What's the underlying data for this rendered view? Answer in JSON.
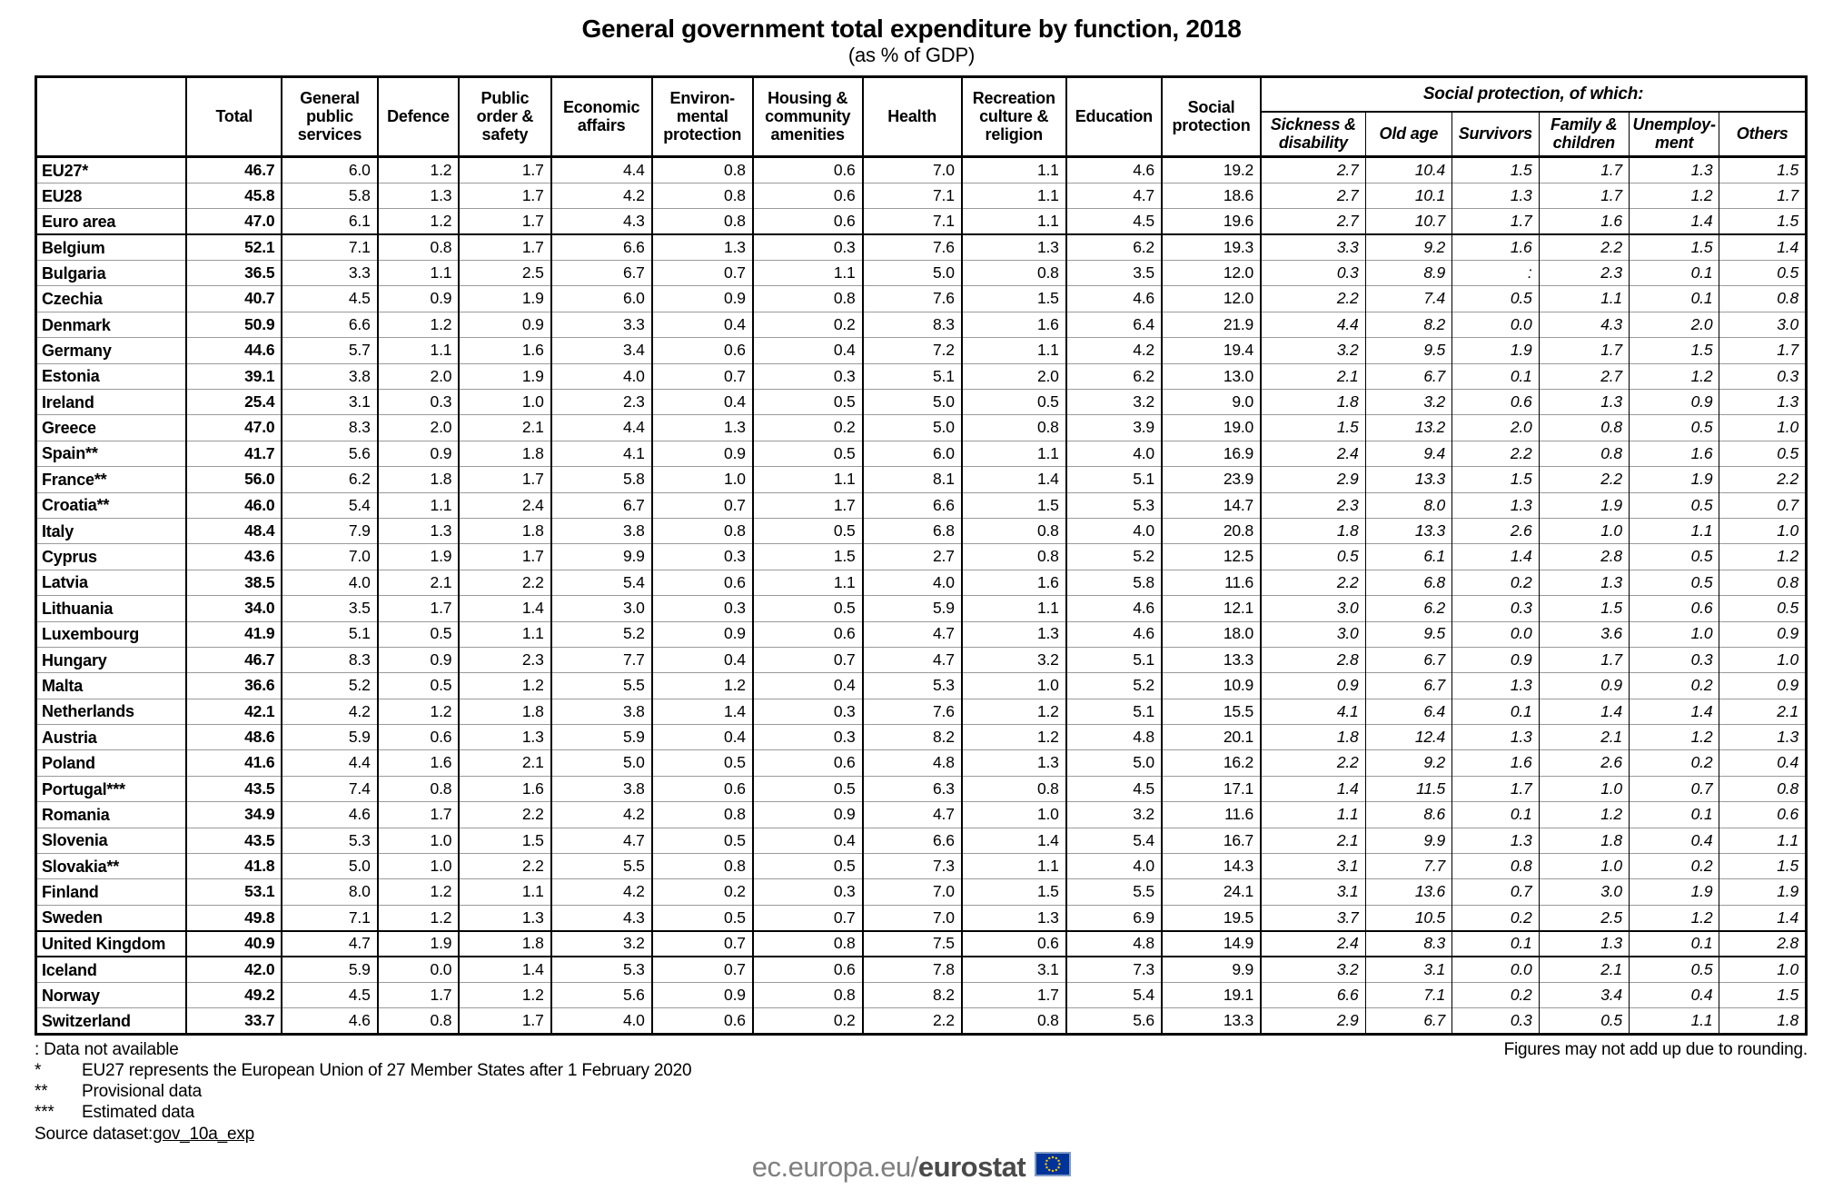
{
  "title": "General government total expenditure by function, 2018",
  "subtitle": "(as % of GDP)",
  "table": {
    "columns": [
      "Total",
      "General public services",
      "Defence",
      "Public order & safety",
      "Economic affairs",
      "Environ-mental protection",
      "Housing & community amenities",
      "Health",
      "Recreation culture & religion",
      "Education",
      "Social protection"
    ],
    "group_header": "Social protection, of which:",
    "sub_columns": [
      "Sickness & disability",
      "Old age",
      "Survivors",
      "Family & children",
      "Unemploy-ment",
      "Others"
    ],
    "rows": [
      {
        "name": "EU27*",
        "values": [
          "46.7",
          "6.0",
          "1.2",
          "1.7",
          "4.4",
          "0.8",
          "0.6",
          "7.0",
          "1.1",
          "4.6",
          "19.2",
          "2.7",
          "10.4",
          "1.5",
          "1.7",
          "1.3",
          "1.5"
        ]
      },
      {
        "name": "EU28",
        "values": [
          "45.8",
          "5.8",
          "1.3",
          "1.7",
          "4.2",
          "0.8",
          "0.6",
          "7.1",
          "1.1",
          "4.7",
          "18.6",
          "2.7",
          "10.1",
          "1.3",
          "1.7",
          "1.2",
          "1.7"
        ]
      },
      {
        "name": "Euro area",
        "values": [
          "47.0",
          "6.1",
          "1.2",
          "1.7",
          "4.3",
          "0.8",
          "0.6",
          "7.1",
          "1.1",
          "4.5",
          "19.6",
          "2.7",
          "10.7",
          "1.7",
          "1.6",
          "1.4",
          "1.5"
        ]
      },
      {
        "name": "Belgium",
        "group_start": true,
        "values": [
          "52.1",
          "7.1",
          "0.8",
          "1.7",
          "6.6",
          "1.3",
          "0.3",
          "7.6",
          "1.3",
          "6.2",
          "19.3",
          "3.3",
          "9.2",
          "1.6",
          "2.2",
          "1.5",
          "1.4"
        ]
      },
      {
        "name": "Bulgaria",
        "values": [
          "36.5",
          "3.3",
          "1.1",
          "2.5",
          "6.7",
          "0.7",
          "1.1",
          "5.0",
          "0.8",
          "3.5",
          "12.0",
          "0.3",
          "8.9",
          ":",
          "2.3",
          "0.1",
          "0.5"
        ]
      },
      {
        "name": "Czechia",
        "values": [
          "40.7",
          "4.5",
          "0.9",
          "1.9",
          "6.0",
          "0.9",
          "0.8",
          "7.6",
          "1.5",
          "4.6",
          "12.0",
          "2.2",
          "7.4",
          "0.5",
          "1.1",
          "0.1",
          "0.8"
        ]
      },
      {
        "name": "Denmark",
        "values": [
          "50.9",
          "6.6",
          "1.2",
          "0.9",
          "3.3",
          "0.4",
          "0.2",
          "8.3",
          "1.6",
          "6.4",
          "21.9",
          "4.4",
          "8.2",
          "0.0",
          "4.3",
          "2.0",
          "3.0"
        ]
      },
      {
        "name": "Germany",
        "values": [
          "44.6",
          "5.7",
          "1.1",
          "1.6",
          "3.4",
          "0.6",
          "0.4",
          "7.2",
          "1.1",
          "4.2",
          "19.4",
          "3.2",
          "9.5",
          "1.9",
          "1.7",
          "1.5",
          "1.7"
        ]
      },
      {
        "name": "Estonia",
        "values": [
          "39.1",
          "3.8",
          "2.0",
          "1.9",
          "4.0",
          "0.7",
          "0.3",
          "5.1",
          "2.0",
          "6.2",
          "13.0",
          "2.1",
          "6.7",
          "0.1",
          "2.7",
          "1.2",
          "0.3"
        ]
      },
      {
        "name": "Ireland",
        "values": [
          "25.4",
          "3.1",
          "0.3",
          "1.0",
          "2.3",
          "0.4",
          "0.5",
          "5.0",
          "0.5",
          "3.2",
          "9.0",
          "1.8",
          "3.2",
          "0.6",
          "1.3",
          "0.9",
          "1.3"
        ]
      },
      {
        "name": "Greece",
        "values": [
          "47.0",
          "8.3",
          "2.0",
          "2.1",
          "4.4",
          "1.3",
          "0.2",
          "5.0",
          "0.8",
          "3.9",
          "19.0",
          "1.5",
          "13.2",
          "2.0",
          "0.8",
          "0.5",
          "1.0"
        ]
      },
      {
        "name": "Spain**",
        "values": [
          "41.7",
          "5.6",
          "0.9",
          "1.8",
          "4.1",
          "0.9",
          "0.5",
          "6.0",
          "1.1",
          "4.0",
          "16.9",
          "2.4",
          "9.4",
          "2.2",
          "0.8",
          "1.6",
          "0.5"
        ]
      },
      {
        "name": "France**",
        "values": [
          "56.0",
          "6.2",
          "1.8",
          "1.7",
          "5.8",
          "1.0",
          "1.1",
          "8.1",
          "1.4",
          "5.1",
          "23.9",
          "2.9",
          "13.3",
          "1.5",
          "2.2",
          "1.9",
          "2.2"
        ]
      },
      {
        "name": "Croatia**",
        "values": [
          "46.0",
          "5.4",
          "1.1",
          "2.4",
          "6.7",
          "0.7",
          "1.7",
          "6.6",
          "1.5",
          "5.3",
          "14.7",
          "2.3",
          "8.0",
          "1.3",
          "1.9",
          "0.5",
          "0.7"
        ]
      },
      {
        "name": "Italy",
        "values": [
          "48.4",
          "7.9",
          "1.3",
          "1.8",
          "3.8",
          "0.8",
          "0.5",
          "6.8",
          "0.8",
          "4.0",
          "20.8",
          "1.8",
          "13.3",
          "2.6",
          "1.0",
          "1.1",
          "1.0"
        ]
      },
      {
        "name": "Cyprus",
        "values": [
          "43.6",
          "7.0",
          "1.9",
          "1.7",
          "9.9",
          "0.3",
          "1.5",
          "2.7",
          "0.8",
          "5.2",
          "12.5",
          "0.5",
          "6.1",
          "1.4",
          "2.8",
          "0.5",
          "1.2"
        ]
      },
      {
        "name": "Latvia",
        "values": [
          "38.5",
          "4.0",
          "2.1",
          "2.2",
          "5.4",
          "0.6",
          "1.1",
          "4.0",
          "1.6",
          "5.8",
          "11.6",
          "2.2",
          "6.8",
          "0.2",
          "1.3",
          "0.5",
          "0.8"
        ]
      },
      {
        "name": "Lithuania",
        "values": [
          "34.0",
          "3.5",
          "1.7",
          "1.4",
          "3.0",
          "0.3",
          "0.5",
          "5.9",
          "1.1",
          "4.6",
          "12.1",
          "3.0",
          "6.2",
          "0.3",
          "1.5",
          "0.6",
          "0.5"
        ]
      },
      {
        "name": "Luxembourg",
        "values": [
          "41.9",
          "5.1",
          "0.5",
          "1.1",
          "5.2",
          "0.9",
          "0.6",
          "4.7",
          "1.3",
          "4.6",
          "18.0",
          "3.0",
          "9.5",
          "0.0",
          "3.6",
          "1.0",
          "0.9"
        ]
      },
      {
        "name": "Hungary",
        "values": [
          "46.7",
          "8.3",
          "0.9",
          "2.3",
          "7.7",
          "0.4",
          "0.7",
          "4.7",
          "3.2",
          "5.1",
          "13.3",
          "2.8",
          "6.7",
          "0.9",
          "1.7",
          "0.3",
          "1.0"
        ]
      },
      {
        "name": "Malta",
        "values": [
          "36.6",
          "5.2",
          "0.5",
          "1.2",
          "5.5",
          "1.2",
          "0.4",
          "5.3",
          "1.0",
          "5.2",
          "10.9",
          "0.9",
          "6.7",
          "1.3",
          "0.9",
          "0.2",
          "0.9"
        ]
      },
      {
        "name": "Netherlands",
        "values": [
          "42.1",
          "4.2",
          "1.2",
          "1.8",
          "3.8",
          "1.4",
          "0.3",
          "7.6",
          "1.2",
          "5.1",
          "15.5",
          "4.1",
          "6.4",
          "0.1",
          "1.4",
          "1.4",
          "2.1"
        ]
      },
      {
        "name": "Austria",
        "values": [
          "48.6",
          "5.9",
          "0.6",
          "1.3",
          "5.9",
          "0.4",
          "0.3",
          "8.2",
          "1.2",
          "4.8",
          "20.1",
          "1.8",
          "12.4",
          "1.3",
          "2.1",
          "1.2",
          "1.3"
        ]
      },
      {
        "name": "Poland",
        "values": [
          "41.6",
          "4.4",
          "1.6",
          "2.1",
          "5.0",
          "0.5",
          "0.6",
          "4.8",
          "1.3",
          "5.0",
          "16.2",
          "2.2",
          "9.2",
          "1.6",
          "2.6",
          "0.2",
          "0.4"
        ]
      },
      {
        "name": "Portugal***",
        "values": [
          "43.5",
          "7.4",
          "0.8",
          "1.6",
          "3.8",
          "0.6",
          "0.5",
          "6.3",
          "0.8",
          "4.5",
          "17.1",
          "1.4",
          "11.5",
          "1.7",
          "1.0",
          "0.7",
          "0.8"
        ]
      },
      {
        "name": "Romania",
        "values": [
          "34.9",
          "4.6",
          "1.7",
          "2.2",
          "4.2",
          "0.8",
          "0.9",
          "4.7",
          "1.0",
          "3.2",
          "11.6",
          "1.1",
          "8.6",
          "0.1",
          "1.2",
          "0.1",
          "0.6"
        ]
      },
      {
        "name": "Slovenia",
        "values": [
          "43.5",
          "5.3",
          "1.0",
          "1.5",
          "4.7",
          "0.5",
          "0.4",
          "6.6",
          "1.4",
          "5.4",
          "16.7",
          "2.1",
          "9.9",
          "1.3",
          "1.8",
          "0.4",
          "1.1"
        ]
      },
      {
        "name": "Slovakia**",
        "values": [
          "41.8",
          "5.0",
          "1.0",
          "2.2",
          "5.5",
          "0.8",
          "0.5",
          "7.3",
          "1.1",
          "4.0",
          "14.3",
          "3.1",
          "7.7",
          "0.8",
          "1.0",
          "0.2",
          "1.5"
        ]
      },
      {
        "name": "Finland",
        "values": [
          "53.1",
          "8.0",
          "1.2",
          "1.1",
          "4.2",
          "0.2",
          "0.3",
          "7.0",
          "1.5",
          "5.5",
          "24.1",
          "3.1",
          "13.6",
          "0.7",
          "3.0",
          "1.9",
          "1.9"
        ]
      },
      {
        "name": "Sweden",
        "values": [
          "49.8",
          "7.1",
          "1.2",
          "1.3",
          "4.3",
          "0.5",
          "0.7",
          "7.0",
          "1.3",
          "6.9",
          "19.5",
          "3.7",
          "10.5",
          "0.2",
          "2.5",
          "1.2",
          "1.4"
        ]
      },
      {
        "name": "United Kingdom",
        "group_start": true,
        "values": [
          "40.9",
          "4.7",
          "1.9",
          "1.8",
          "3.2",
          "0.7",
          "0.8",
          "7.5",
          "0.6",
          "4.8",
          "14.9",
          "2.4",
          "8.3",
          "0.1",
          "1.3",
          "0.1",
          "2.8"
        ]
      },
      {
        "name": "Iceland",
        "group_start": true,
        "values": [
          "42.0",
          "5.9",
          "0.0",
          "1.4",
          "5.3",
          "0.7",
          "0.6",
          "7.8",
          "3.1",
          "7.3",
          "9.9",
          "3.2",
          "3.1",
          "0.0",
          "2.1",
          "0.5",
          "1.0"
        ]
      },
      {
        "name": "Norway",
        "values": [
          "49.2",
          "4.5",
          "1.7",
          "1.2",
          "5.6",
          "0.9",
          "0.8",
          "8.2",
          "1.7",
          "5.4",
          "19.1",
          "6.6",
          "7.1",
          "0.2",
          "3.4",
          "0.4",
          "1.5"
        ]
      },
      {
        "name": "Switzerland",
        "values": [
          "33.7",
          "4.6",
          "0.8",
          "1.7",
          "4.0",
          "0.6",
          "0.2",
          "2.2",
          "0.8",
          "5.6",
          "13.3",
          "2.9",
          "6.7",
          "0.3",
          "0.5",
          "1.1",
          "1.8"
        ]
      }
    ]
  },
  "notes": {
    "not_available": ": Data not available",
    "items": [
      {
        "marker": "*",
        "text": "EU27 represents the European Union of 27 Member States after 1 February 2020"
      },
      {
        "marker": "**",
        "text": "Provisional data"
      },
      {
        "marker": "***",
        "text": "Estimated data"
      }
    ],
    "source_prefix": "Source dataset: ",
    "source_link": "gov_10a_exp",
    "rounding": "Figures may not add up due to rounding."
  },
  "footer": {
    "url_prefix": "ec.europa.eu/",
    "brand": "eurostat",
    "flag_blue": "#003399",
    "flag_stars": "#FFCC00"
  }
}
